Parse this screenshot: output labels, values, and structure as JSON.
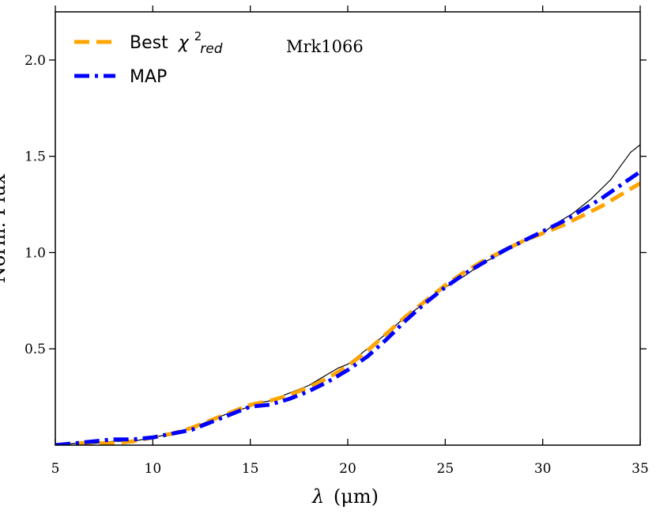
{
  "chart_data": {
    "type": "line",
    "title": "",
    "annotation": "Mrk1066",
    "xlabel_symbol": "λ",
    "xlabel_unit": "(μm)",
    "ylabel": "Norm. Flux",
    "xlim": [
      5,
      35
    ],
    "ylim": [
      0,
      2.25
    ],
    "xticks": [
      5,
      10,
      15,
      20,
      25,
      30,
      35
    ],
    "yticks": [
      0.5,
      1.0,
      1.5,
      2.0
    ],
    "xtick_labels": [
      "5",
      "10",
      "15",
      "20",
      "25",
      "30",
      "35"
    ],
    "ytick_labels": [
      "0.5",
      "1.0",
      "1.5",
      "2.0"
    ],
    "legend": [
      {
        "label": "Best",
        "math_symbol": "χ",
        "superscript": "2",
        "subscript": "red",
        "color": "#FFA500",
        "style": "dashed"
      },
      {
        "label": "MAP",
        "color": "#0000FF",
        "style": "dashdot"
      }
    ],
    "series": [
      {
        "name": "Observed",
        "color": "#000000",
        "style": "solid",
        "x": [
          5,
          6,
          7,
          8,
          9,
          10,
          11,
          12,
          13,
          14,
          15,
          15.5,
          16,
          16.5,
          17,
          17.5,
          18,
          18.5,
          19,
          19.5,
          20,
          21,
          22,
          23,
          24,
          25,
          26,
          27,
          28,
          29,
          30,
          30.5,
          31,
          31.5,
          32,
          32.5,
          33,
          33.5,
          34,
          34.5,
          35
        ],
        "y": [
          0.0,
          0.01,
          0.01,
          0.02,
          0.02,
          0.04,
          0.06,
          0.09,
          0.13,
          0.17,
          0.2,
          0.22,
          0.23,
          0.25,
          0.27,
          0.29,
          0.31,
          0.34,
          0.37,
          0.4,
          0.42,
          0.5,
          0.58,
          0.67,
          0.74,
          0.82,
          0.88,
          0.95,
          1.0,
          1.06,
          1.1,
          1.14,
          1.17,
          1.2,
          1.24,
          1.28,
          1.33,
          1.38,
          1.45,
          1.52,
          1.56
        ]
      },
      {
        "name": "Best χ²red",
        "color": "#FFA500",
        "style": "dashed",
        "x": [
          5,
          6,
          7,
          8,
          9,
          10,
          11,
          12,
          13,
          14,
          15,
          16,
          17,
          18,
          19,
          20,
          21,
          22,
          23,
          24,
          25,
          26,
          27,
          28,
          29,
          30,
          31,
          32,
          33,
          34,
          35
        ],
        "y": [
          0.0,
          0.01,
          0.01,
          0.01,
          0.02,
          0.04,
          0.06,
          0.09,
          0.13,
          0.17,
          0.21,
          0.23,
          0.26,
          0.3,
          0.35,
          0.41,
          0.49,
          0.58,
          0.67,
          0.75,
          0.83,
          0.9,
          0.96,
          1.01,
          1.06,
          1.1,
          1.14,
          1.19,
          1.24,
          1.3,
          1.36
        ]
      },
      {
        "name": "MAP",
        "color": "#0000FF",
        "style": "dashdot",
        "x": [
          5,
          6,
          7,
          8,
          9,
          10,
          11,
          12,
          13,
          14,
          15,
          16,
          17,
          18,
          19,
          20,
          21,
          22,
          23,
          24,
          25,
          26,
          27,
          28,
          29,
          30,
          31,
          32,
          33,
          34,
          35
        ],
        "y": [
          0.0,
          0.01,
          0.02,
          0.03,
          0.03,
          0.04,
          0.06,
          0.08,
          0.12,
          0.16,
          0.2,
          0.21,
          0.24,
          0.28,
          0.33,
          0.39,
          0.46,
          0.55,
          0.65,
          0.74,
          0.82,
          0.89,
          0.95,
          1.01,
          1.06,
          1.11,
          1.16,
          1.22,
          1.28,
          1.35,
          1.42
        ]
      }
    ]
  }
}
